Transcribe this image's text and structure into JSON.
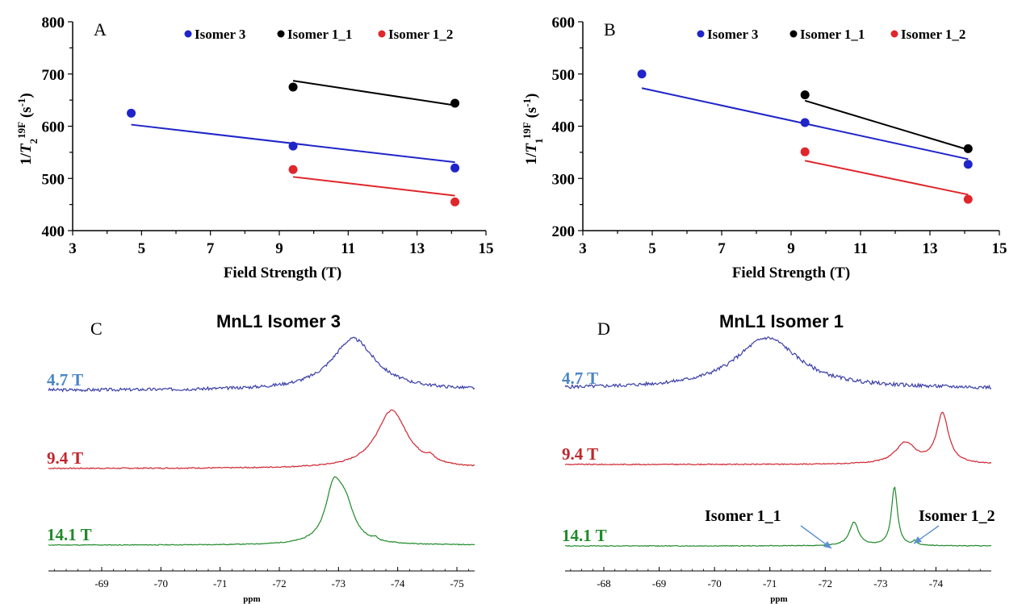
{
  "colors": {
    "blue": "#1f25c8",
    "black": "#000000",
    "red": "#e0262b",
    "spec_blue": "#3a3ea8",
    "spec_red": "#cf2530",
    "spec_green": "#1f8a2a",
    "label_blue": "#4a86c8",
    "label_red": "#c0262c",
    "label_green": "#1f8a2a"
  },
  "chart_data": [
    {
      "id": "A",
      "panel_label": "A",
      "type": "scatter",
      "xlabel": "Field Strength (T)",
      "ylabel_parts": {
        "pre": "1/",
        "italic": "T",
        "sub": "2",
        "sup": "19F",
        "post": " (s",
        "sup2": "-1",
        "close": ")"
      },
      "xlim": [
        3,
        15
      ],
      "ylim": [
        400,
        800
      ],
      "xticks": [
        "3",
        "5",
        "7",
        "9",
        "11",
        "13",
        "15"
      ],
      "yticks": [
        "400",
        "500",
        "600",
        "700",
        "800"
      ],
      "legend": [
        {
          "name": "Isomer 3",
          "color": "blue"
        },
        {
          "name": "Isomer 1_1",
          "color": "black"
        },
        {
          "name": "Isomer 1_2",
          "color": "red"
        }
      ],
      "series": [
        {
          "name": "Isomer 3",
          "color": "blue",
          "x": [
            4.7,
            9.4,
            14.1
          ],
          "y": [
            625,
            562,
            520
          ],
          "fit": [
            [
              4.7,
              603
            ],
            [
              14.1,
              531
            ]
          ]
        },
        {
          "name": "Isomer 1_1",
          "color": "black",
          "x": [
            9.4,
            14.1
          ],
          "y": [
            675,
            644
          ],
          "fit": [
            [
              9.4,
              687
            ],
            [
              14.1,
              640
            ]
          ]
        },
        {
          "name": "Isomer 1_2",
          "color": "red",
          "x": [
            9.4,
            14.1
          ],
          "y": [
            517,
            455
          ],
          "fit": [
            [
              9.4,
              503
            ],
            [
              14.1,
              467
            ]
          ]
        }
      ]
    },
    {
      "id": "B",
      "panel_label": "B",
      "type": "scatter",
      "xlabel": "Field Strength (T)",
      "ylabel_parts": {
        "pre": "1/",
        "italic": "T",
        "sub": "1",
        "sup": "19F",
        "post": " (s",
        "sup2": "-1",
        "close": ")"
      },
      "xlim": [
        3,
        15
      ],
      "ylim": [
        200,
        600
      ],
      "xticks": [
        "3",
        "5",
        "7",
        "9",
        "11",
        "13",
        "15"
      ],
      "yticks": [
        "200",
        "300",
        "400",
        "500",
        "600"
      ],
      "legend": [
        {
          "name": "Isomer 3",
          "color": "blue"
        },
        {
          "name": "Isomer 1_1",
          "color": "black"
        },
        {
          "name": "Isomer 1_2",
          "color": "red"
        }
      ],
      "series": [
        {
          "name": "Isomer 3",
          "color": "blue",
          "x": [
            4.7,
            9.4,
            14.1
          ],
          "y": [
            500,
            407,
            327
          ],
          "fit": [
            [
              4.7,
              473
            ],
            [
              14.1,
              337
            ]
          ]
        },
        {
          "name": "Isomer 1_1",
          "color": "black",
          "x": [
            9.4,
            14.1
          ],
          "y": [
            460,
            357
          ],
          "fit": [
            [
              9.4,
              449
            ],
            [
              14.1,
              355
            ]
          ]
        },
        {
          "name": "Isomer 1_2",
          "color": "red",
          "x": [
            9.4,
            14.1
          ],
          "y": [
            351,
            260
          ],
          "fit": [
            [
              9.4,
              334
            ],
            [
              14.1,
              269
            ]
          ]
        }
      ]
    },
    {
      "id": "C",
      "panel_label": "C",
      "type": "line",
      "title": "MnL1 Isomer 3",
      "xlabel": "ppm",
      "xlim": [
        -68.1,
        -75.3
      ],
      "xticks": [
        "-69",
        "-70",
        "-71",
        "-72",
        "-73",
        "-74",
        "-75"
      ],
      "series": [
        {
          "name": "4.7 T",
          "color": "spec_blue",
          "label_color": "label_blue",
          "peaks": [
            {
              "c": -73.25,
              "w": 0.45,
              "h": 1.0
            }
          ],
          "noise": 0.06,
          "seed": 3
        },
        {
          "name": "9.4 T",
          "color": "spec_red",
          "label_color": "label_red",
          "peaks": [
            {
              "c": -73.9,
              "w": 0.32,
              "h": 1.0
            },
            {
              "c": -74.55,
              "w": 0.08,
              "h": 0.08
            }
          ],
          "noise": 0.02,
          "seed": 7
        },
        {
          "name": "14.1 T",
          "color": "spec_green",
          "label_color": "label_green",
          "peaks": [
            {
              "c": -72.92,
              "w": 0.17,
              "h": 1.0
            },
            {
              "c": -73.12,
              "w": 0.18,
              "h": 0.6
            },
            {
              "c": -73.62,
              "w": 0.05,
              "h": 0.05
            }
          ],
          "noise": 0.015,
          "seed": 11
        }
      ]
    },
    {
      "id": "D",
      "panel_label": "D",
      "type": "line",
      "title": "MnL1 Isomer 1",
      "xlabel": "ppm",
      "xlim": [
        -67.3,
        -75.0
      ],
      "xticks": [
        "-68",
        "-69",
        "-70",
        "-71",
        "-72",
        "-73",
        "-74"
      ],
      "annotations": [
        {
          "text": "Isomer 1_1"
        },
        {
          "text": "Isomer 1_2"
        }
      ],
      "series": [
        {
          "name": "4.7 T",
          "color": "spec_blue",
          "label_color": "label_blue",
          "peaks": [
            {
              "c": -70.95,
              "w": 0.7,
              "h": 1.0
            }
          ],
          "noise": 0.07,
          "seed": 5
        },
        {
          "name": "9.4 T",
          "color": "spec_red",
          "label_color": "label_red",
          "peaks": [
            {
              "c": -73.45,
              "w": 0.22,
              "h": 0.42
            },
            {
              "c": -74.12,
              "w": 0.13,
              "h": 1.0
            }
          ],
          "noise": 0.02,
          "seed": 9
        },
        {
          "name": "14.1 T",
          "color": "spec_green",
          "label_color": "label_green",
          "peaks": [
            {
              "c": -72.52,
              "w": 0.1,
              "h": 0.4
            },
            {
              "c": -73.25,
              "w": 0.065,
              "h": 1.0
            },
            {
              "c": -73.62,
              "w": 0.04,
              "h": 0.07
            }
          ],
          "noise": 0.012,
          "seed": 13
        }
      ]
    }
  ]
}
